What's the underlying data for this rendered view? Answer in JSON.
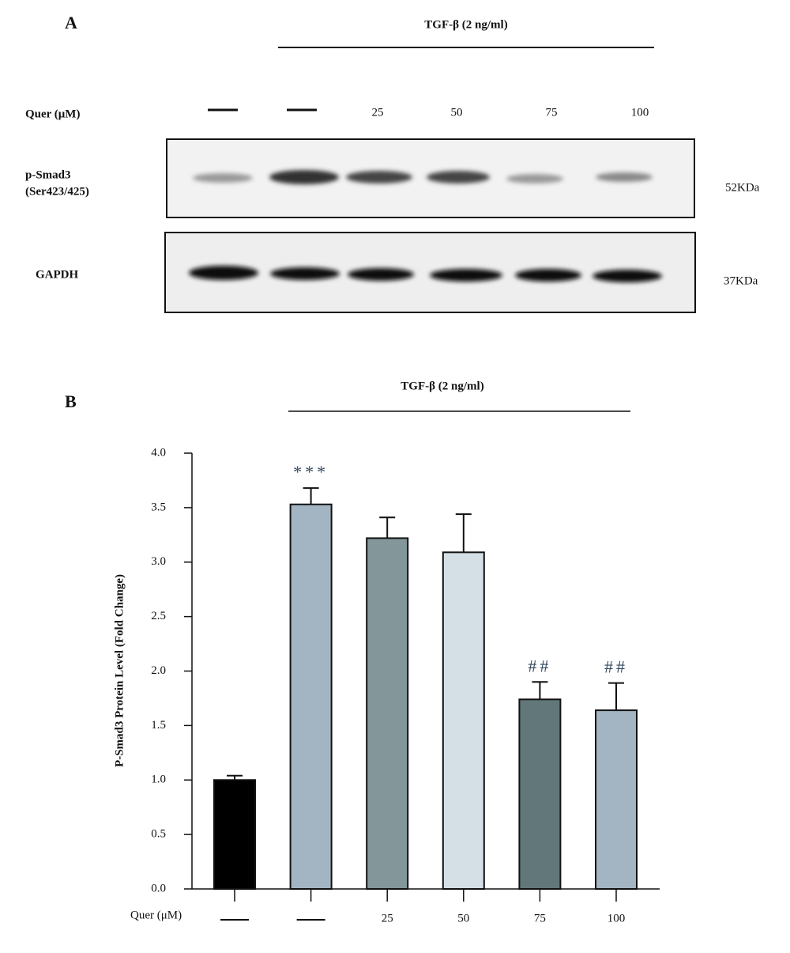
{
  "panel_a": {
    "panel_label": "A",
    "treatment": "TGF-β (2 ng/ml)",
    "dose_label": "Quer (μM)",
    "lanes": [
      null,
      null,
      "25",
      "50",
      "75",
      "100"
    ],
    "rows": [
      {
        "name": "p-Smad3",
        "sub": "(Ser423/425)",
        "size": "52KDa"
      },
      {
        "name": "GAPDH",
        "size": "37KDa"
      }
    ]
  },
  "chart_data": {
    "type": "bar",
    "panel_label": "B",
    "treatment": "TGF-β (2 ng/ml)",
    "x_label": "Quer (μM)",
    "y_label": "P-Smad3 Protein Level (Fold Change)",
    "categories": [
      null,
      null,
      "25",
      "50",
      "75",
      "100"
    ],
    "values": [
      1.0,
      3.53,
      3.22,
      3.09,
      1.74,
      1.64
    ],
    "errors": [
      0.04,
      0.15,
      0.19,
      0.35,
      0.16,
      0.25
    ],
    "colors": [
      "#000000",
      "#a3b5c3",
      "#83979b",
      "#d5e0e6",
      "#62777a",
      "#a3b5c3"
    ],
    "annotations": [
      null,
      "***",
      null,
      null,
      "##",
      "##"
    ],
    "ylim": [
      0,
      4
    ],
    "yticks": [
      {
        "value": 0,
        "label": "0.0"
      },
      {
        "value": 0.5,
        "label": "0.5"
      },
      {
        "value": 1,
        "label": "1.0"
      },
      {
        "value": 1.5,
        "label": "1.5"
      },
      {
        "value": 2,
        "label": "2.0"
      },
      {
        "value": 2.5,
        "label": "2.5"
      },
      {
        "value": 3,
        "label": "3.0"
      },
      {
        "value": 3.5,
        "label": "3.5"
      },
      {
        "value": 4,
        "label": "4.0"
      }
    ]
  }
}
